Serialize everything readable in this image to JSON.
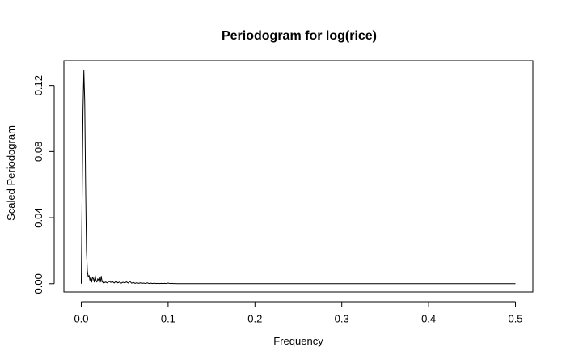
{
  "chart_data": {
    "type": "line",
    "title": "Periodogram for log(rice)",
    "xlabel": "Frequency",
    "ylabel": "Scaled Periodogram",
    "xlim": [
      -0.02,
      0.52
    ],
    "ylim": [
      -0.005,
      0.135
    ],
    "x_ticks": [
      0.0,
      0.1,
      0.2,
      0.3,
      0.4,
      0.5
    ],
    "x_tick_labels": [
      "0.0",
      "0.1",
      "0.2",
      "0.3",
      "0.4",
      "0.5"
    ],
    "y_ticks": [
      0.0,
      0.04,
      0.08,
      0.12
    ],
    "y_tick_labels": [
      "0.00",
      "0.04",
      "0.08",
      "0.12"
    ],
    "grid": false,
    "line_color": "#000000",
    "series": [
      {
        "x": [
          0.0,
          0.002,
          0.003,
          0.004,
          0.005,
          0.006,
          0.007,
          0.008,
          0.009,
          0.01,
          0.011,
          0.012,
          0.013,
          0.014,
          0.015,
          0.016,
          0.017,
          0.018,
          0.019,
          0.02,
          0.021,
          0.022,
          0.023,
          0.024,
          0.025,
          0.026,
          0.028,
          0.03,
          0.032,
          0.034,
          0.036,
          0.038,
          0.04,
          0.042,
          0.044,
          0.046,
          0.048,
          0.05,
          0.052,
          0.054,
          0.056,
          0.058,
          0.06,
          0.062,
          0.064,
          0.066,
          0.068,
          0.07,
          0.072,
          0.074,
          0.076,
          0.078,
          0.08,
          0.082,
          0.084,
          0.086,
          0.088,
          0.09,
          0.092,
          0.094,
          0.096,
          0.098,
          0.1,
          0.102,
          0.104,
          0.106,
          0.108,
          0.11,
          0.15,
          0.2,
          0.3,
          0.4,
          0.5
        ],
        "y": [
          0.0,
          0.105,
          0.129,
          0.11,
          0.06,
          0.02,
          0.008,
          0.004,
          0.005,
          0.002,
          0.004,
          0.001,
          0.004,
          0.003,
          0.001,
          0.005,
          0.002,
          0.001,
          0.003,
          0.002,
          0.004,
          0.001,
          0.0045,
          0.001,
          0.002,
          0.0005,
          0.001,
          0.0005,
          0.0015,
          0.0008,
          0.0012,
          0.0004,
          0.0016,
          0.0005,
          0.001,
          0.0003,
          0.0009,
          0.0005,
          0.0011,
          0.0004,
          0.0014,
          0.0003,
          0.0008,
          0.0002,
          0.0006,
          0.0002,
          0.0005,
          0.0002,
          0.0004,
          0.0001,
          0.0005,
          0.0001,
          0.0003,
          0.0001,
          0.0003,
          0.0001,
          0.0002,
          0.0001,
          0.0002,
          0.0001,
          0.0002,
          0.0001,
          0.0004,
          0.0001,
          0.0002,
          0.0001,
          0.0001,
          0.0,
          0.0,
          0.0,
          0.0,
          0.0,
          0.0
        ]
      }
    ]
  }
}
